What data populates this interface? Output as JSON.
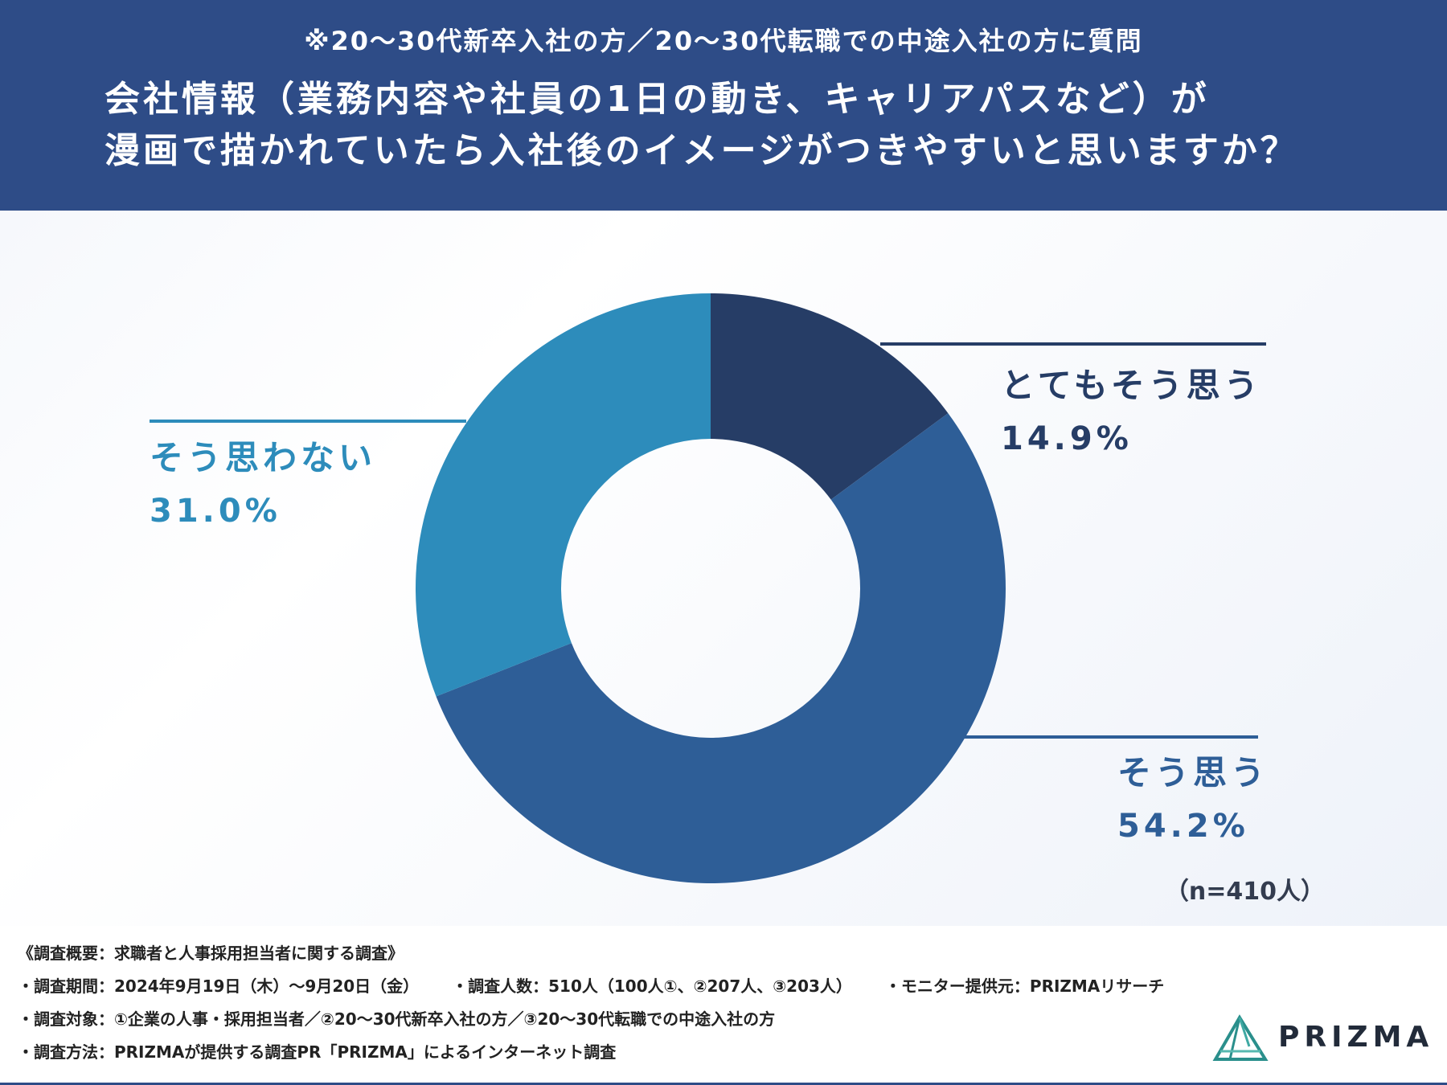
{
  "header": {
    "note": "※20〜30代新卒入社の方／20〜30代転職での中途入社の方に質問",
    "title_line1": "会社情報（業務内容や社員の1日の動き、キャリアパスなど）が",
    "title_line2": "漫画で描かれていたら入社後のイメージがつきやすいと思いますか？"
  },
  "chart_data": {
    "type": "pie",
    "style": "donut",
    "categories": [
      "とてもそう思う",
      "そう思う",
      "そう思わない"
    ],
    "values": [
      14.9,
      54.2,
      31.0
    ],
    "value_labels": [
      "14.9%",
      "54.2%",
      "31.0%"
    ],
    "colors": [
      "#263d66",
      "#2e5e97",
      "#2d8cbb"
    ],
    "label_colors": [
      "#263d66",
      "#2e5e97",
      "#2d8cbb"
    ],
    "sample_size": "（n=410人）"
  },
  "footer": {
    "overview": "《調査概要：求職者と人事採用担当者に関する調査》",
    "period": "・調査期間：2024年9月19日（木）〜9月20日（金）",
    "count": "・調査人数：510人（100人①、②207人、③203人）",
    "monitor": "・モニター提供元：PRIZMAリサーチ",
    "target": "・調査対象：①企業の人事・採用担当者／②20〜30代新卒入社の方／③20〜30代転職での中途入社の方",
    "method": "・調査方法：PRIZMAが提供する調査PR「PRIZMA」によるインターネット調査"
  },
  "logo": {
    "text": "PRIZMA"
  }
}
